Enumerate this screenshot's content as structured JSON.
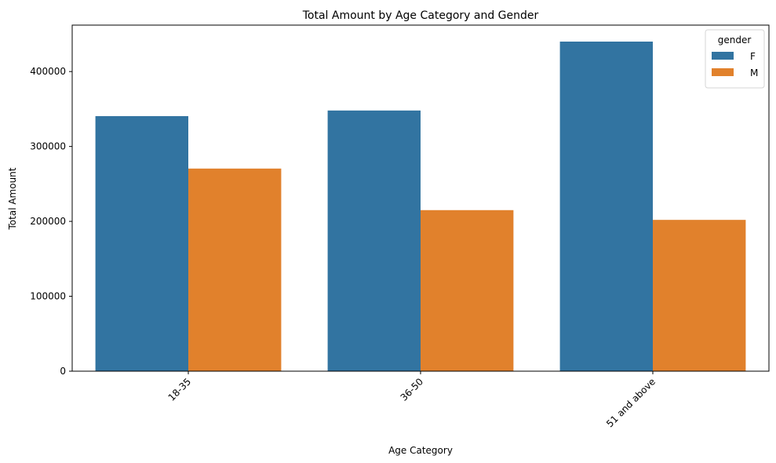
{
  "chart_data": {
    "type": "bar",
    "title": "Total Amount by Age Category and Gender",
    "xlabel": "Age Category",
    "ylabel": "Total Amount",
    "categories": [
      "18-35",
      "36-50",
      "51 and above"
    ],
    "series": [
      {
        "name": "F",
        "color": "#3274a1",
        "values": [
          340500,
          348000,
          440000
        ]
      },
      {
        "name": "M",
        "color": "#e1812c",
        "values": [
          270500,
          215000,
          202000
        ]
      }
    ],
    "ylim": [
      0,
      462000
    ],
    "yticks": [
      0,
      100000,
      200000,
      300000,
      400000
    ],
    "ytick_labels": [
      "0",
      "100000",
      "200000",
      "300000",
      "400000"
    ],
    "grid": false,
    "legend": {
      "title": "gender",
      "placement": "top-right"
    }
  }
}
